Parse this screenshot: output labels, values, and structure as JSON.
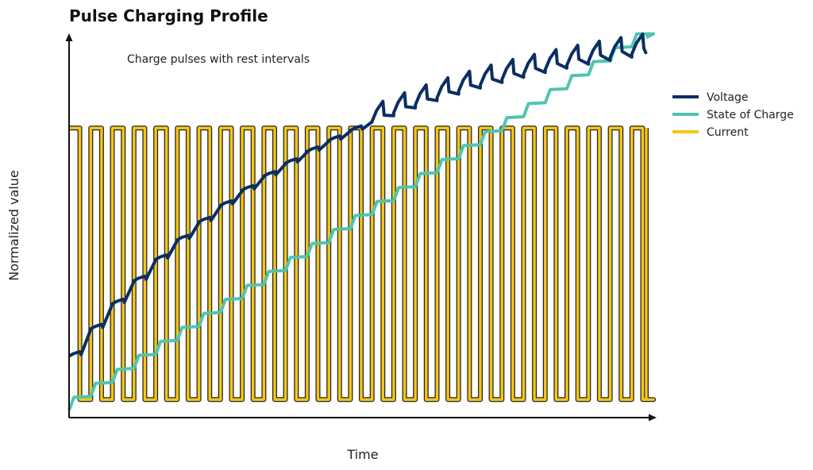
{
  "chart_data": {
    "type": "line",
    "title": "Pulse Charging Profile",
    "subtitle": "Charge pulses with rest intervals",
    "xlabel": "Time",
    "ylabel": "Normalized value",
    "xlim": [
      0,
      100
    ],
    "ylim": [
      0,
      1
    ],
    "grid": false,
    "legend_position": "right",
    "pulse_period": 3.75,
    "pulse_count": 27,
    "series": [
      {
        "name": "Voltage",
        "color": "#0b2e63",
        "samples": {
          "start": 0.17,
          "end": 1.01,
          "pulse_rise": 0.055,
          "rest_drop": 0.035
        }
      },
      {
        "name": "State of Charge",
        "color": "#4fc5b0",
        "samples": {
          "start": 0.02,
          "end": 1.05,
          "step_per_pulse": 0.038
        }
      },
      {
        "name": "Current",
        "color": "#f5c518",
        "outline": "#222222",
        "samples": {
          "high": 0.8,
          "low": 0.05
        }
      }
    ]
  }
}
